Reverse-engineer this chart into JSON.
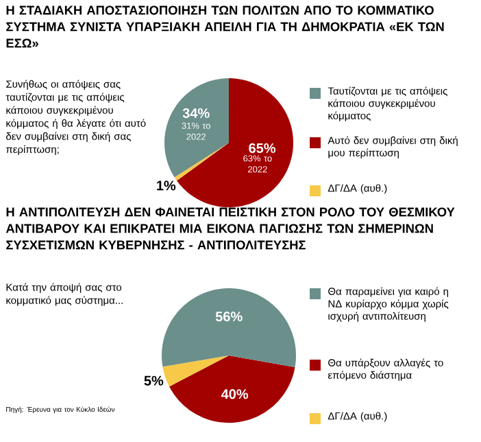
{
  "chart_data": [
    {
      "type": "pie",
      "title": "Η ΣΤΑΔΙΑΚΗ ΑΠΟΣΤΑΣΙΟΠΟΙΗΣΗ ΤΩΝ ΠΟΛΙΤΩΝ ΑΠΟ ΤΟ ΚΟΜΜΑΤΙΚΟ ΣΥΣΤΗΜΑ ΣΥΝΙΣΤΑ ΥΠΑΡΞΙΑΚΗ ΑΠΕΙΛΗ ΓΙΑ ΤΗ ΔΗΜΟΚΡΑΤΙΑ «ΕΚ ΤΩΝ ΕΣΩ»",
      "subtitle": "Συνήθως οι απόψεις σας ταυτίζονται με τις απόψεις κάποιου συγκεκριμένου κόμματος ή θα λέγατε ότι αυτό δεν συμβαίνει στη δική σας περίπτωση;",
      "categories": [
        "Ταυτίζονται με τις απόψεις κάποιου συγκεκριμένου κόμματος",
        "Αυτό δεν συμβαίνει στη δική μου περίπτωση",
        "ΔΓ/ΔΑ (αυθ.)"
      ],
      "values": [
        34,
        65,
        1
      ],
      "colors": [
        "#6b8f8b",
        "#a30000",
        "#f7c948"
      ],
      "value_labels": [
        "34%",
        "65%",
        "1%"
      ],
      "legend": "right",
      "annotations": [
        "31% το 2022",
        "63% το 2022"
      ]
    },
    {
      "type": "pie",
      "title": "Η ΑΝΤΙΠΟΛΙΤΕΥΣΗ ΔΕΝ ΦΑΙΝΕΤΑΙ ΠΕΙΣΤΙΚΗ ΣΤΟΝ ΡΟΛΟ ΤΟΥ ΘΕΣΜΙΚΟΥ ΑΝΤΙΒΑΡΟΥ ΚΑΙ ΕΠΙΚΡΑΤΕΙ ΜΙΑ ΕΙΚΟΝΑ ΠΑΓΙΩΣΗΣ ΤΩΝ ΣΗΜΕΡΙΝΩΝ ΣΥΣΧΕΤΙΣΜΩΝ ΚΥΒΕΡΝΗΣΗΣ - ΑΝΤΙΠΟΛΙΤΕΥΣΗΣ",
      "subtitle": "Κατά την άποψή σας στο κομματικό μας σύστημα...",
      "categories": [
        "Θα παραμείνει για καιρό η ΝΔ κυρίαρχο κόμμα χωρίς ισχυρή αντιπολίτευση",
        "Θα υπάρξουν αλλαγές το επόμενο διάστημα",
        "ΔΓ/ΔΑ (αυθ.)"
      ],
      "values": [
        56,
        40,
        5
      ],
      "colors": [
        "#6b8f8b",
        "#a30000",
        "#f7c948"
      ],
      "value_labels": [
        "56%",
        "40%",
        "5%"
      ],
      "legend": "right",
      "annotations": [
        "Πηγή: Έρευνα για τον Κύκλο Ιδεών"
      ]
    }
  ]
}
